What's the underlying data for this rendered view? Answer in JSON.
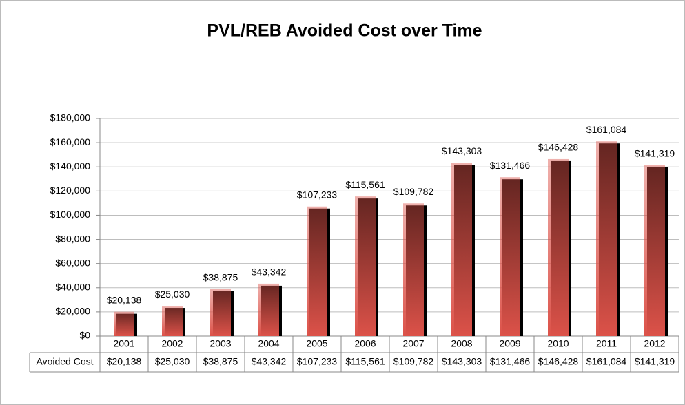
{
  "chart_data": {
    "type": "bar",
    "title": "PVL/REB Avoided Cost over Time",
    "categories": [
      "2001",
      "2002",
      "2003",
      "2004",
      "2005",
      "2006",
      "2007",
      "2008",
      "2009",
      "2010",
      "2011",
      "2012"
    ],
    "series": [
      {
        "name": "Avoided Cost",
        "color": "#dc5249",
        "values": [
          20138,
          25030,
          38875,
          43342,
          107233,
          115561,
          109782,
          143303,
          131466,
          146428,
          161084,
          141319
        ],
        "value_labels": [
          "$20,138",
          "$25,030",
          "$38,875",
          "$43,342",
          "$107,233",
          "$115,561",
          "$109,782",
          "$143,303",
          "$131,466",
          "$146,428",
          "$161,084",
          "$141,319"
        ]
      }
    ],
    "ylim": [
      0,
      180000
    ],
    "yticks": [
      {
        "value": 0,
        "label": "$0"
      },
      {
        "value": 20000,
        "label": "$20,000"
      },
      {
        "value": 40000,
        "label": "$40,000"
      },
      {
        "value": 60000,
        "label": "$60,000"
      },
      {
        "value": 80000,
        "label": "$80,000"
      },
      {
        "value": 100000,
        "label": "$100,000"
      },
      {
        "value": 120000,
        "label": "$120,000"
      },
      {
        "value": 140000,
        "label": "$140,000"
      },
      {
        "value": 160000,
        "label": "$160,000"
      },
      {
        "value": 180000,
        "label": "$180,000"
      }
    ],
    "grid": true
  }
}
